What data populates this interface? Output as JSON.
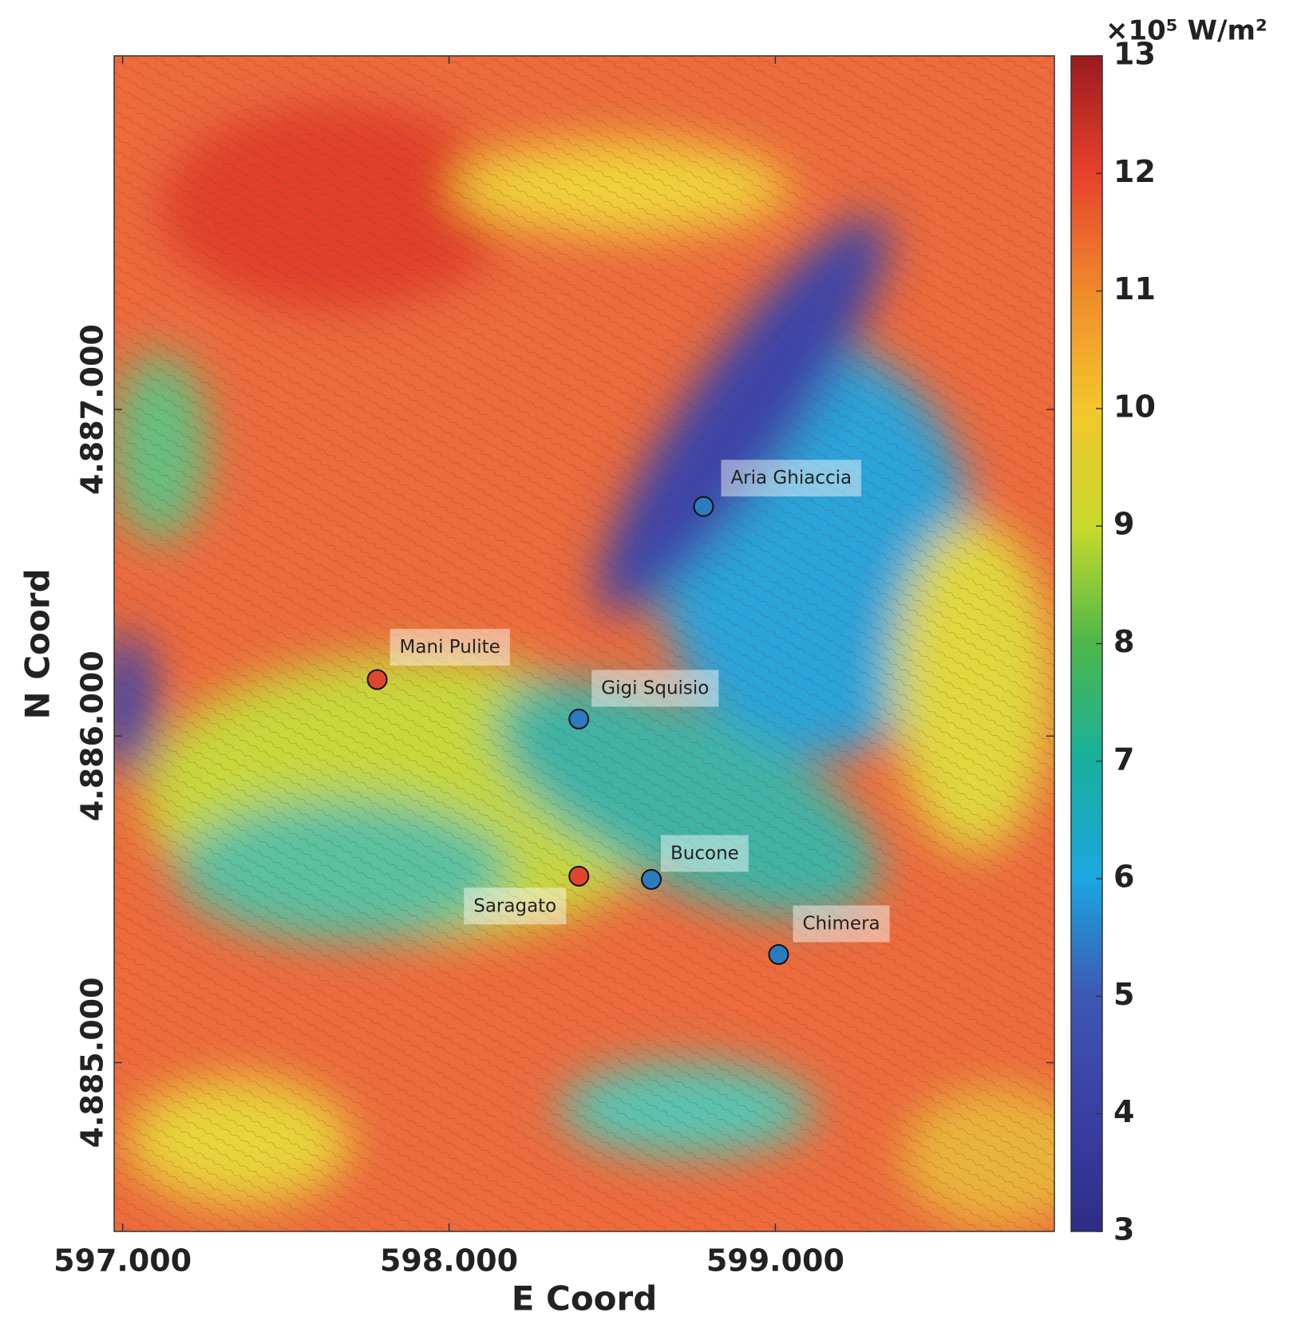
{
  "chart_data": {
    "type": "scatter",
    "x_label": "E Coord",
    "y_label": "N Coord",
    "xlim": [
      596974,
      599855
    ],
    "ylim": [
      4884483,
      4888083
    ],
    "xticks": [
      {
        "value": 597000,
        "label": "597.000"
      },
      {
        "value": 598000,
        "label": "598.000"
      },
      {
        "value": 599000,
        "label": "599.000"
      }
    ],
    "yticks": [
      {
        "value": 4885000,
        "label": "4.885.000"
      },
      {
        "value": 4886000,
        "label": "4.886.000"
      },
      {
        "value": 4887000,
        "label": "4.887.000"
      }
    ],
    "point_labels": [
      "Aria Ghiaccia",
      "Mani Pulite",
      "Gigi Squisio",
      "Saragato",
      "Bucone",
      "Chimera"
    ],
    "x": [
      598780,
      597780,
      598398,
      598398,
      598620,
      599010
    ],
    "y": [
      4886703,
      4886173,
      4886052,
      4885571,
      4885561,
      4885331
    ],
    "point_colors": [
      "#2b7bbf",
      "#e0452e",
      "#2b7bbf",
      "#e0452e",
      "#2b7bbf",
      "#2b7bbf"
    ],
    "colorbar": {
      "label": "×10⁵ W/m²",
      "lim": [
        3,
        13
      ],
      "ticks": [
        3,
        4,
        5,
        6,
        7,
        8,
        9,
        10,
        11,
        12,
        13
      ],
      "colors": [
        "#2c2d86",
        "#3a3fa2",
        "#3d58b2",
        "#1ba6e0",
        "#17b09e",
        "#4db74a",
        "#c9da2c",
        "#f3c62a",
        "#ef8a2c",
        "#e8412c",
        "#9a1b1e"
      ]
    }
  }
}
